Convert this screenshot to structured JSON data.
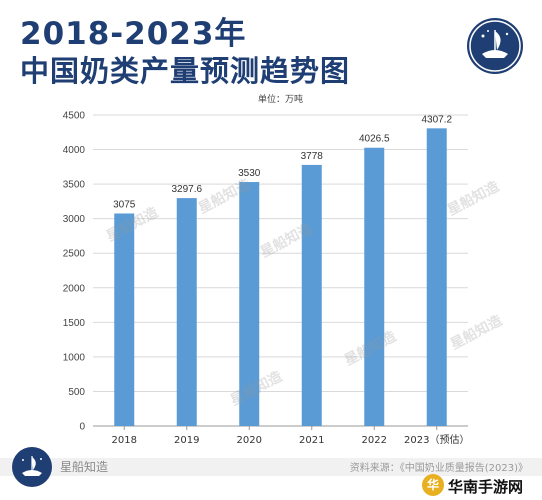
{
  "header": {
    "title_line1": "2018-2023年",
    "title_line2": "中国奶类产量预测趋势图",
    "unit": "单位：万吨"
  },
  "footer": {
    "brand": "星船知造",
    "source": "资料来源：《中国奶业质量报告(2023)》",
    "site": "华南手游网",
    "site_icon_char": "华"
  },
  "watermark": "星船知造",
  "colors": {
    "bar": "#5b9bd5",
    "title": "#1f3f74",
    "grid": "#d9d9d9"
  },
  "chart_data": {
    "type": "bar",
    "categories": [
      "2018",
      "2019",
      "2020",
      "2021",
      "2022",
      "2023（预估）"
    ],
    "values": [
      3075,
      3297.6,
      3530,
      3778,
      4026.5,
      4307.2
    ],
    "value_labels": [
      "3075",
      "3297.6",
      "3530",
      "3778",
      "4026.5",
      "4307.2"
    ],
    "yticks": [
      "0",
      "500",
      "1000",
      "1500",
      "2000",
      "2500",
      "3000",
      "3500",
      "4000",
      "4500"
    ],
    "ylim": [
      0,
      4500
    ],
    "ylabel": "单位：万吨",
    "grid": true
  }
}
